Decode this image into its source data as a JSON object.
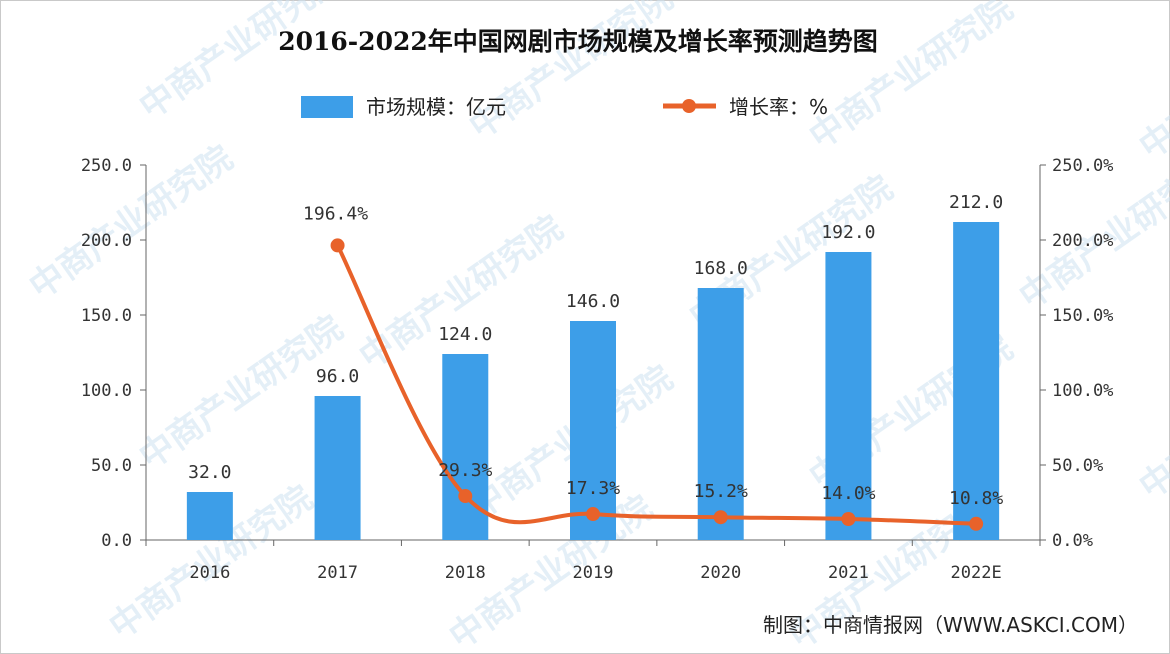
{
  "chart_data": {
    "type": "bar",
    "title": "2016-2022年中国网剧市场规模及增长率预测趋势图",
    "categories": [
      "2016",
      "2017",
      "2018",
      "2019",
      "2020",
      "2021",
      "2022E"
    ],
    "series": [
      {
        "name": "市场规模：亿元",
        "type": "bar",
        "axis": "left",
        "color": "#3d9ee8",
        "values": [
          32.0,
          96.0,
          124.0,
          146.0,
          168.0,
          192.0,
          212.0
        ],
        "labels": [
          "32.0",
          "96.0",
          "124.0",
          "146.0",
          "168.0",
          "192.0",
          "212.0"
        ]
      },
      {
        "name": "增长率：%",
        "type": "line",
        "axis": "right",
        "color": "#e8622a",
        "values": [
          null,
          196.4,
          29.3,
          17.3,
          15.2,
          14.0,
          10.8
        ],
        "labels": [
          "",
          "196.4%",
          "29.3%",
          "17.3%",
          "15.2%",
          "14.0%",
          "10.8%"
        ]
      }
    ],
    "y_left": {
      "range": [
        0,
        250
      ],
      "ticks": [
        "0.0",
        "50.0",
        "100.0",
        "150.0",
        "200.0",
        "250.0"
      ]
    },
    "y_right": {
      "range": [
        0,
        250
      ],
      "ticks": [
        "0.0%",
        "50.0%",
        "100.0%",
        "150.0%",
        "200.0%",
        "250.0%"
      ]
    },
    "legend_position": "top-center",
    "grid": false
  },
  "source_text": "制图：中商情报网（WWW.ASKCI.COM）",
  "watermark_text": "中商产业研究院"
}
